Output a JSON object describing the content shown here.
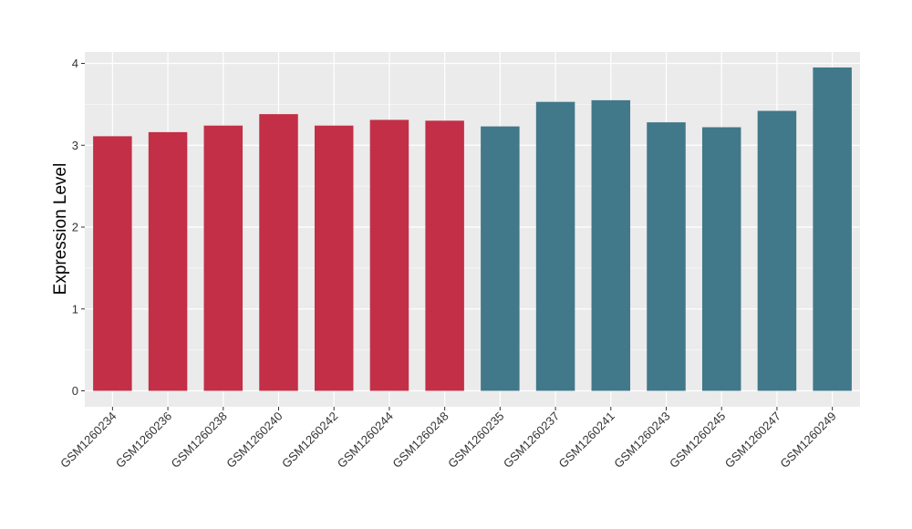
{
  "chart_data": {
    "type": "bar",
    "title": "",
    "xlabel": "",
    "ylabel": "Expression Level",
    "ylim": [
      0,
      4.1
    ],
    "yticks": [
      0,
      1,
      2,
      3,
      4
    ],
    "grid": true,
    "legend": "none",
    "categories": [
      "GSM1260234",
      "GSM1260236",
      "GSM1260238",
      "GSM1260240",
      "GSM1260242",
      "GSM1260244",
      "GSM1260248",
      "GSM1260235",
      "GSM1260237",
      "GSM1260241",
      "GSM1260243",
      "GSM1260245",
      "GSM1260247",
      "GSM1260249"
    ],
    "values": [
      3.11,
      3.16,
      3.24,
      3.38,
      3.24,
      3.31,
      3.3,
      3.23,
      3.53,
      3.55,
      3.28,
      3.22,
      3.42,
      3.95
    ],
    "groups": [
      "red",
      "red",
      "red",
      "red",
      "red",
      "red",
      "red",
      "teal",
      "teal",
      "teal",
      "teal",
      "teal",
      "teal",
      "teal"
    ],
    "colors": {
      "red": "#c22f47",
      "teal": "#41788a",
      "panel": "#ebebeb",
      "grid": "#ffffff"
    }
  }
}
